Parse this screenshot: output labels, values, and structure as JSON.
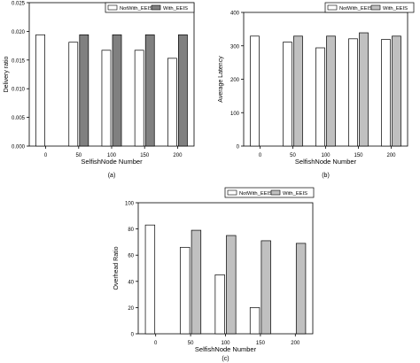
{
  "chart_data": [
    {
      "panel": "(a)",
      "type": "bar",
      "title": "",
      "xlabel": "SelfishNode Number",
      "ylabel": "Delivery ratio",
      "categories": [
        "0",
        "50",
        "100",
        "150",
        "200"
      ],
      "ylim": [
        0,
        0.025
      ],
      "yticks": [
        "0.000",
        "0.005",
        "0.010",
        "0.015",
        "0.020",
        "0.025"
      ],
      "grid": false,
      "legend": "top-right",
      "series": [
        {
          "name": "NotWith_EEIS",
          "color": "#ffffff",
          "values": [
            0.0194,
            0.0181,
            0.0167,
            0.0167,
            0.0153
          ]
        },
        {
          "name": "With_EEIS",
          "color": "#808080",
          "values": [
            null,
            0.0194,
            0.0194,
            0.0194,
            0.0194
          ]
        }
      ]
    },
    {
      "panel": "(b)",
      "type": "bar",
      "title": "",
      "xlabel": "SelfishNode Number",
      "ylabel": "Average Latency",
      "categories": [
        "0",
        "50",
        "100",
        "150",
        "200"
      ],
      "ylim": [
        0,
        400
      ],
      "yticks": [
        "0",
        "100",
        "200",
        "300",
        "400"
      ],
      "grid": false,
      "legend": "top-right",
      "series": [
        {
          "name": "NotWith_EEIS",
          "color": "#ffffff",
          "values": [
            329,
            311,
            294,
            321,
            319
          ]
        },
        {
          "name": "With_EEIS",
          "color": "#c0c0c0",
          "values": [
            null,
            329,
            329,
            339,
            329
          ]
        }
      ]
    },
    {
      "panel": "(c)",
      "type": "bar",
      "title": "",
      "xlabel": "SelfishNode Number",
      "ylabel": "Overhead Ratio",
      "categories": [
        "0",
        "50",
        "100",
        "150",
        "200"
      ],
      "ylim": [
        0,
        100
      ],
      "yticks": [
        "0",
        "20",
        "40",
        "60",
        "80",
        "100"
      ],
      "grid": false,
      "legend": "top-right",
      "series": [
        {
          "name": "NotWith_EEIS",
          "color": "#ffffff",
          "values": [
            83,
            66,
            45,
            20,
            null
          ]
        },
        {
          "name": "With_EEIS",
          "color": "#c0c0c0",
          "values": [
            null,
            79,
            75,
            71,
            69
          ]
        }
      ]
    }
  ]
}
